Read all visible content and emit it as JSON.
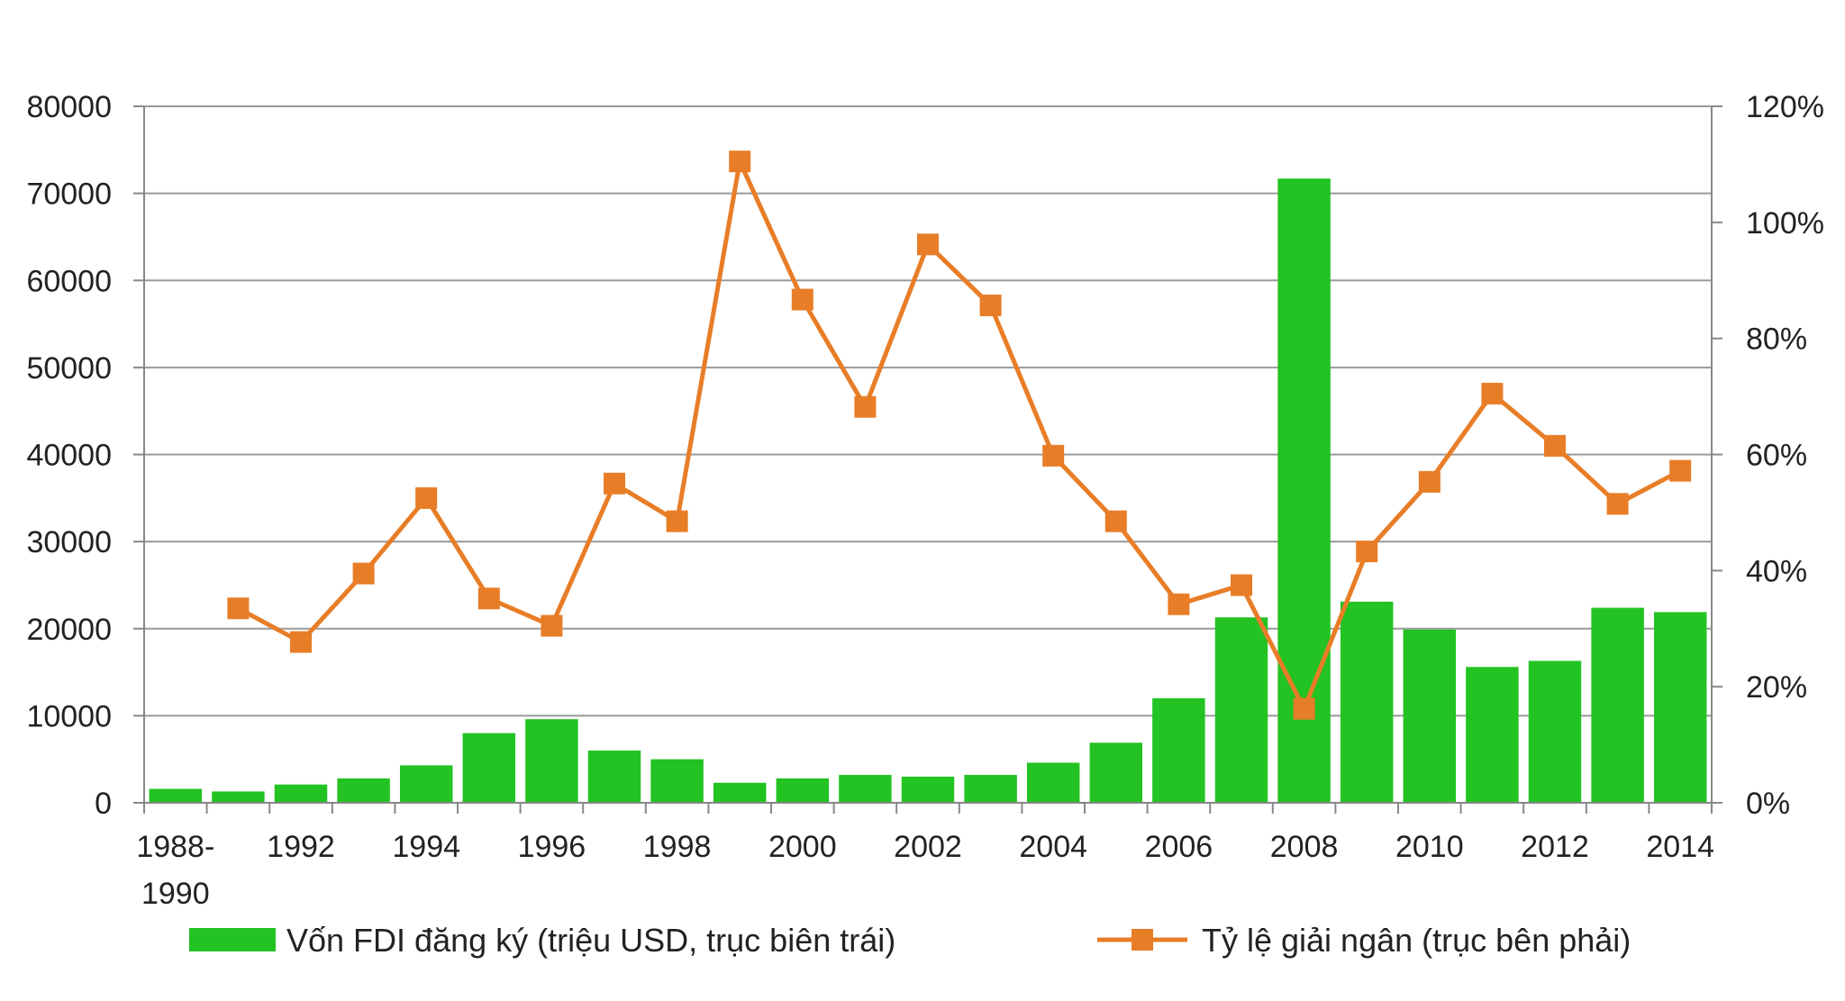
{
  "chart_data": {
    "type": "bar+line",
    "title": "",
    "categories": [
      "1988-1990",
      "1991",
      "1992",
      "1993",
      "1994",
      "1995",
      "1996",
      "1997",
      "1998",
      "1999",
      "2000",
      "2001",
      "2002",
      "2003",
      "2004",
      "2005",
      "2006",
      "2007",
      "2008",
      "2009",
      "2010",
      "2011",
      "2012",
      "2013",
      "2014"
    ],
    "x_tick_labels": [
      "1988-\n1990",
      "",
      "1992",
      "",
      "1994",
      "",
      "1996",
      "",
      "1998",
      "",
      "2000",
      "",
      "2002",
      "",
      "2004",
      "",
      "2006",
      "",
      "2008",
      "",
      "2010",
      "",
      "2012",
      "",
      "2014"
    ],
    "series": [
      {
        "name": "Vốn FDI đăng ký (triệu USD, trục biên trái)",
        "type": "bar",
        "axis": "left",
        "color": "#22c322",
        "values": [
          1600,
          1300,
          2100,
          2800,
          4300,
          8000,
          9600,
          6000,
          5000,
          2300,
          2800,
          3200,
          3000,
          3200,
          4600,
          6900,
          12000,
          21300,
          71700,
          23100,
          19900,
          15600,
          16300,
          22400,
          21900
        ]
      },
      {
        "name": "Tỷ lệ giải ngân (trục bên phải)",
        "type": "line",
        "axis": "right",
        "color": "#e87d27",
        "values": [
          null,
          33.5,
          27.7,
          39.5,
          52.5,
          35.2,
          30.5,
          55.0,
          48.5,
          110.5,
          86.7,
          68.2,
          96.2,
          85.7,
          59.8,
          48.5,
          34.2,
          37.5,
          16.2,
          43.3,
          55.3,
          70.5,
          61.5,
          51.5,
          57.2
        ]
      }
    ],
    "y_left": {
      "lim": [
        0,
        80000
      ],
      "ticks": [
        "0",
        "10000",
        "20000",
        "30000",
        "40000",
        "50000",
        "60000",
        "70000",
        "80000"
      ]
    },
    "y_right": {
      "lim": [
        0,
        120
      ],
      "ticks": [
        "0%",
        "20%",
        "40%",
        "60%",
        "80%",
        "100%",
        "120%"
      ]
    },
    "grid": true,
    "legend_position": "bottom"
  }
}
